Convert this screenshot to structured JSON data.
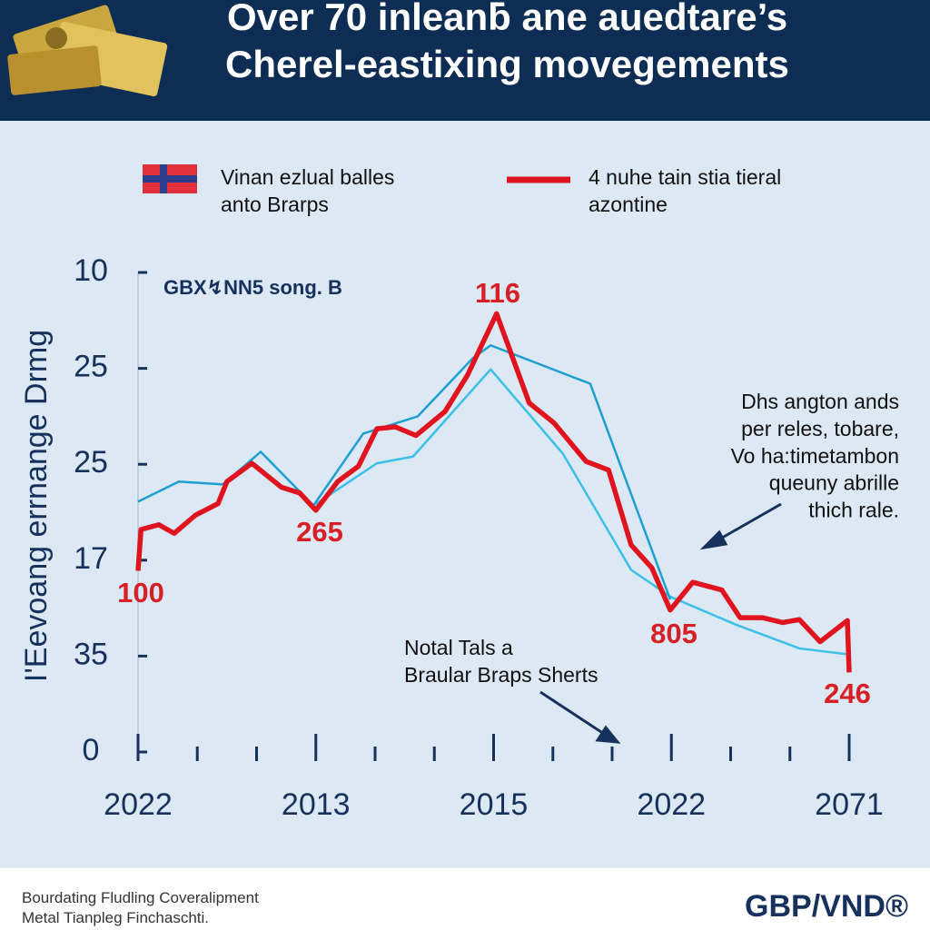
{
  "chart_data": {
    "type": "line",
    "title": [
      "Over 70 inleanƃ ane auedtare’s",
      "Cherel-eastixing movegements"
    ],
    "legend": [
      "Vinan ezlual balles\nanto Brarps",
      "4 nuhe tain stia tieral\nazontine"
    ],
    "inner_label": "GBX↯NN5 song. B",
    "y_label": "I'Eevoang errnange Drmg",
    "notes": [
      "Dhs angton ands\nper reles, tobare,\nVo ha:timetambon\nqueuny abrille\nthich rale.",
      "Notal Tals a\nBraular Braps Sherts"
    ],
    "annotations": [
      "116",
      "265",
      "100",
      "805",
      "246"
    ],
    "categories": [
      "2022",
      null,
      null,
      "2013",
      null,
      null,
      "2015",
      null,
      null,
      "2022",
      null,
      null,
      "2071"
    ],
    "xlim": [
      0,
      12
    ],
    "ylim": [
      0,
      5
    ],
    "yticks": [
      0,
      {
        "value": 1,
        "label": "35"
      },
      {
        "value": 2,
        "label": "17"
      },
      {
        "value": 3,
        "label": "25"
      },
      {
        "value": 4,
        "label": "25"
      },
      {
        "value": 5,
        "label": "10"
      }
    ],
    "series": [
      {
        "name": "4 nuhe tain stia tieral\nazontine",
        "color": "#e0141e",
        "x": [
          0,
          0.05,
          0.35,
          0.61,
          0.97,
          1.35,
          1.5,
          1.92,
          2.42,
          2.73,
          3.0,
          3.37,
          3.72,
          4.03,
          4.34,
          4.69,
          5.18,
          5.56,
          6.05,
          6.6,
          7.02,
          7.56,
          7.94,
          8.32,
          8.67,
          8.98,
          9.36,
          9.85,
          10.16,
          10.54,
          10.88,
          11.16,
          11.51,
          11.97,
          12.0
        ],
        "values": [
          1.89,
          2.32,
          2.37,
          2.28,
          2.47,
          2.59,
          2.82,
          3.01,
          2.76,
          2.7,
          2.52,
          2.82,
          2.98,
          3.37,
          3.39,
          3.3,
          3.55,
          3.93,
          4.57,
          3.64,
          3.43,
          3.03,
          2.94,
          2.16,
          1.92,
          1.48,
          1.77,
          1.69,
          1.4,
          1.4,
          1.35,
          1.38,
          1.15,
          1.37,
          0.83
        ]
      },
      {
        "color": "#1d9fd2",
        "x": [
          0,
          0.69,
          1.43,
          2.07,
          2.96,
          3.8,
          4.72,
          5.64,
          5.95,
          7.63,
          8.98
        ],
        "values": [
          2.61,
          2.82,
          2.79,
          3.13,
          2.57,
          3.32,
          3.5,
          4.1,
          4.24,
          3.84,
          1.59
        ]
      },
      {
        "color": "#3cc0e6",
        "x": [
          2.96,
          4.03,
          4.64,
          5.95,
          7.17,
          8.32,
          8.98,
          10.08,
          11.16,
          11.95
        ],
        "values": [
          2.57,
          3.01,
          3.08,
          3.99,
          3.11,
          1.9,
          1.62,
          1.33,
          1.08,
          1.02
        ]
      }
    ]
  },
  "footer": {
    "text": "Bourdating Fludling Coveralipment\nMetal Tianpleg Finchaschti.",
    "logo": "GBP/VND®"
  }
}
